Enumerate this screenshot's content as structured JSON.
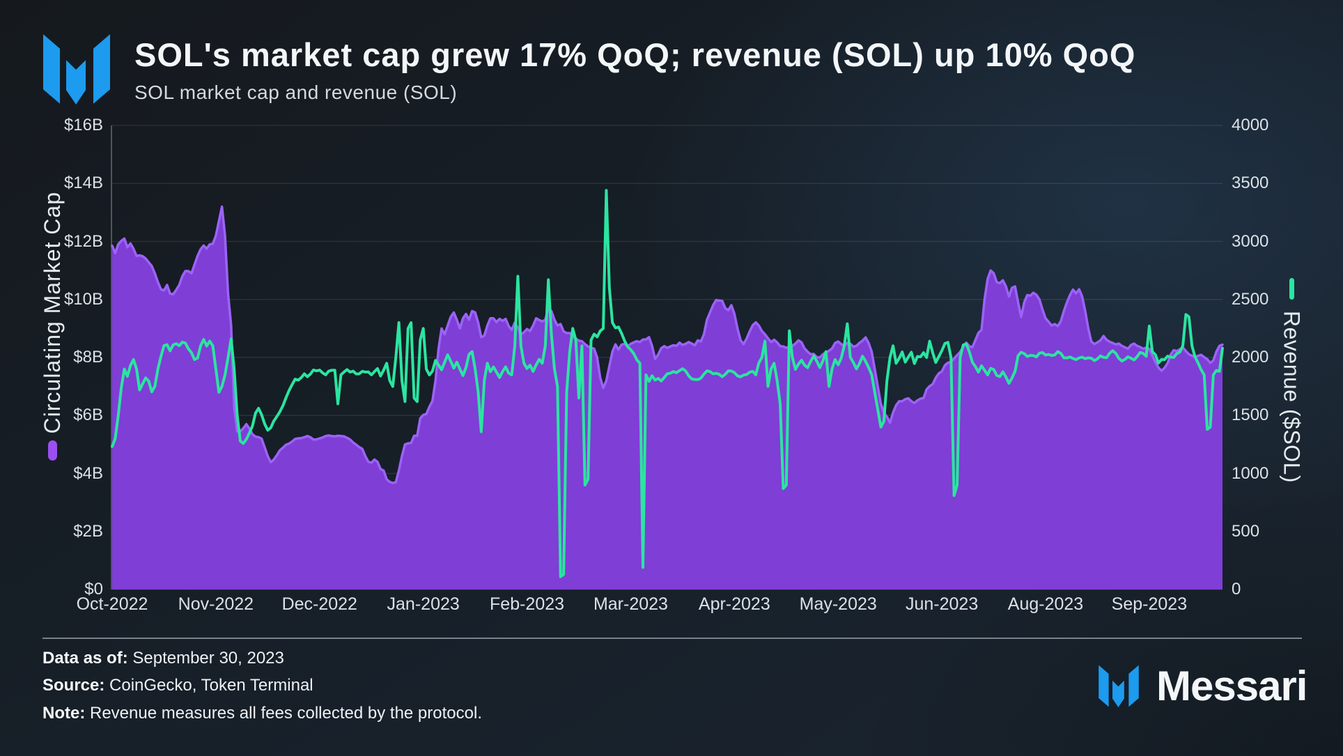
{
  "header": {
    "title": "SOL's market cap grew 17% QoQ; revenue (SOL) up 10% QoQ",
    "subtitle": "SOL market cap and revenue (SOL)"
  },
  "footer": {
    "data_as_of_label": "Data as of:",
    "data_as_of_value": "September 30, 2023",
    "source_label": "Source:",
    "source_value": "CoinGecko, Token Terminal",
    "note_label": "Note:",
    "note_value": "Revenue measures all fees collected by the protocol.",
    "wordmark": "Messari"
  },
  "colors": {
    "brand_blue": "#1c9bef",
    "market_cap_purple": "#7f3ed6",
    "market_cap_legend": "#9b4ff0",
    "market_cap_edge": "#9b63f7",
    "revenue_green": "#2be5a0"
  },
  "chart_data": {
    "type": "area+line",
    "title": "SOL market cap and revenue (SOL)",
    "x_axis": {
      "tick_labels": [
        "Oct-2022",
        "Nov-2022",
        "Dec-2022",
        "Jan-2023",
        "Feb-2023",
        "Mar-2023",
        "Apr-2023",
        "May-2023",
        "Jun-2023",
        "Aug-2023",
        "Sep-2023"
      ],
      "tick_interval_days": 34,
      "range_days": 365
    },
    "y_axis_left": {
      "label": "Circulating Market Cap",
      "tick_labels": [
        "$16B",
        "$14B",
        "$12B",
        "$10B",
        "$8B",
        "$6B",
        "$4B",
        "$2B",
        "$0"
      ],
      "min": 0,
      "max": 16,
      "unit": "billion USD"
    },
    "y_axis_right": {
      "label": "Revenue ($SOL)",
      "tick_labels": [
        "4000",
        "3500",
        "3000",
        "2500",
        "2000",
        "1500",
        "1000",
        "500",
        "0"
      ],
      "min": 0,
      "max": 4000,
      "unit": "SOL"
    },
    "grid": "horizontal",
    "series": [
      {
        "name": "Circulating Market Cap",
        "kind": "area",
        "axis": "left",
        "unit": "billion USD",
        "values": [
          11.85,
          11.6,
          11.9,
          12.02,
          12.1,
          11.8,
          11.93,
          11.75,
          11.5,
          11.52,
          11.49,
          11.41,
          11.28,
          11.15,
          10.9,
          10.6,
          10.35,
          10.31,
          10.5,
          10.2,
          10.18,
          10.33,
          10.5,
          10.8,
          10.98,
          10.98,
          10.9,
          11.2,
          11.5,
          11.73,
          11.86,
          11.75,
          11.9,
          11.92,
          12.2,
          12.7,
          13.2,
          12.2,
          10.2,
          9.1,
          6.3,
          5.45,
          5.45,
          5.56,
          5.7,
          5.55,
          5.35,
          5.27,
          5.25,
          5.2,
          4.9,
          4.6,
          4.39,
          4.48,
          4.63,
          4.8,
          4.89,
          4.99,
          5.03,
          5.1,
          5.19,
          5.21,
          5.22,
          5.25,
          5.29,
          5.25,
          5.17,
          5.17,
          5.21,
          5.24,
          5.29,
          5.31,
          5.29,
          5.28,
          5.3,
          5.29,
          5.28,
          5.23,
          5.17,
          5.07,
          4.99,
          4.91,
          4.85,
          4.6,
          4.4,
          4.37,
          4.48,
          4.4,
          4.15,
          4.1,
          3.8,
          3.71,
          3.67,
          3.7,
          4.1,
          4.6,
          5.0,
          5.04,
          5.05,
          5.3,
          5.3,
          5.9,
          6.02,
          6.05,
          6.3,
          6.5,
          7.2,
          8.3,
          9.0,
          8.8,
          9.1,
          9.4,
          9.55,
          9.3,
          9.0,
          9.35,
          9.5,
          9.3,
          9.6,
          9.55,
          9.2,
          8.7,
          8.75,
          9.1,
          9.35,
          9.35,
          9.22,
          9.33,
          9.26,
          9.33,
          9.08,
          8.95,
          9.2,
          9.03,
          8.79,
          8.87,
          8.98,
          8.91,
          9.1,
          9.35,
          9.29,
          9.24,
          9.3,
          9.68,
          9.6,
          9.3,
          9.1,
          9.15,
          8.9,
          8.84,
          8.84,
          8.73,
          8.65,
          8.58,
          8.56,
          8.46,
          8.38,
          8.34,
          8.3,
          8.0,
          7.3,
          6.95,
          7.2,
          7.7,
          8.2,
          8.45,
          8.27,
          8.44,
          8.47,
          8.38,
          8.47,
          8.52,
          8.56,
          8.53,
          8.62,
          8.62,
          8.7,
          8.4,
          7.95,
          8.1,
          8.32,
          8.39,
          8.33,
          8.38,
          8.42,
          8.4,
          8.51,
          8.43,
          8.47,
          8.53,
          8.48,
          8.42,
          8.59,
          8.55,
          8.8,
          9.3,
          9.55,
          9.8,
          9.98,
          9.96,
          9.95,
          9.7,
          9.63,
          9.8,
          9.5,
          9.0,
          8.6,
          8.46,
          8.65,
          8.9,
          9.11,
          9.21,
          9.1,
          8.91,
          8.8,
          8.66,
          8.53,
          8.61,
          8.52,
          8.39,
          8.38,
          8.33,
          8.37,
          8.4,
          8.48,
          8.59,
          8.52,
          8.31,
          8.2,
          8.11,
          8.12,
          8.01,
          8.0,
          8.11,
          8.17,
          8.23,
          8.31,
          8.5,
          8.55,
          8.46,
          8.4,
          8.5,
          8.47,
          8.37,
          8.4,
          8.5,
          8.58,
          8.69,
          8.5,
          8.2,
          7.6,
          7.0,
          6.4,
          6.1,
          5.95,
          5.75,
          6.1,
          6.35,
          6.49,
          6.49,
          6.56,
          6.59,
          6.49,
          6.43,
          6.52,
          6.58,
          6.6,
          6.9,
          7.01,
          7.08,
          7.3,
          7.45,
          7.52,
          7.73,
          7.82,
          7.84,
          7.96,
          8.08,
          8.19,
          8.36,
          8.51,
          8.39,
          8.35,
          8.6,
          8.85,
          8.95,
          10.0,
          10.7,
          11.0,
          10.9,
          10.6,
          10.56,
          10.66,
          10.45,
          10.1,
          10.4,
          10.45,
          9.9,
          9.4,
          9.9,
          10.15,
          10.13,
          10.23,
          10.16,
          10.0,
          9.65,
          9.35,
          9.23,
          9.1,
          9.15,
          9.08,
          9.25,
          9.6,
          9.9,
          10.15,
          10.34,
          10.21,
          10.35,
          10.1,
          9.6,
          9.0,
          8.55,
          8.46,
          8.52,
          8.59,
          8.74,
          8.61,
          8.54,
          8.5,
          8.45,
          8.48,
          8.4,
          8.35,
          8.3,
          8.43,
          8.48,
          8.4,
          8.36,
          8.3,
          8.34,
          8.3,
          8.07,
          7.84,
          7.65,
          7.54,
          7.64,
          7.8,
          8.1,
          8.25,
          8.22,
          8.28,
          8.34,
          8.22,
          8.11,
          8.06,
          8.01,
          8.06,
          8.09,
          8.01,
          7.94,
          7.81,
          7.9,
          8.2,
          8.4,
          8.44
        ]
      },
      {
        "name": "Revenue ($SOL)",
        "kind": "line",
        "axis": "right",
        "unit": "SOL",
        "values": [
          1232,
          1300,
          1500,
          1740,
          1900,
          1837,
          1930,
          1982,
          1900,
          1720,
          1773,
          1824,
          1795,
          1704,
          1750,
          1900,
          2009,
          2102,
          2110,
          2057,
          2108,
          2119,
          2101,
          2132,
          2124,
          2074,
          2041,
          1982,
          1995,
          2100,
          2155,
          2099,
          2141,
          2100,
          1900,
          1700,
          1750,
          1850,
          2000,
          2160,
          1900,
          1500,
          1280,
          1259,
          1295,
          1348,
          1410,
          1520,
          1562,
          1506,
          1427,
          1373,
          1394,
          1452,
          1491,
          1533,
          1585,
          1653,
          1715,
          1766,
          1813,
          1804,
          1826,
          1859,
          1834,
          1857,
          1892,
          1884,
          1891,
          1867,
          1850,
          1882,
          1890,
          1890,
          1600,
          1850,
          1874,
          1895,
          1874,
          1882,
          1858,
          1859,
          1880,
          1874,
          1875,
          1850,
          1878,
          1904,
          1840,
          1891,
          1950,
          1800,
          1750,
          2000,
          2300,
          1800,
          1620,
          2250,
          2300,
          1650,
          1620,
          2150,
          2250,
          1900,
          1849,
          1882,
          1974,
          1934,
          1894,
          1959,
          2023,
          1967,
          1907,
          1959,
          1900,
          1844,
          1913,
          2027,
          2050,
          1900,
          1700,
          1360,
          1800,
          1950,
          1877,
          1918,
          1873,
          1827,
          1878,
          1919,
          1864,
          1850,
          2100,
          2700,
          2100,
          1950,
          1905,
          1933,
          1880,
          1936,
          1984,
          1950,
          2100,
          2670,
          2200,
          1900,
          1750,
          110,
          130,
          1700,
          2050,
          2250,
          2150,
          1650,
          2100,
          900,
          950,
          2150,
          2201,
          2177,
          2228,
          2250,
          3440,
          2600,
          2300,
          2255,
          2262,
          2208,
          2143,
          2092,
          2067,
          2033,
          1980,
          1950,
          190,
          1850,
          1794,
          1842,
          1805,
          1819,
          1797,
          1827,
          1860,
          1864,
          1878,
          1869,
          1886,
          1903,
          1884,
          1842,
          1815,
          1810,
          1809,
          1821,
          1856,
          1884,
          1878,
          1859,
          1863,
          1855,
          1834,
          1855,
          1884,
          1883,
          1869,
          1841,
          1833,
          1848,
          1853,
          1873,
          1880,
          1850,
          1953,
          2000,
          2140,
          1750,
          1900,
          1950,
          1800,
          1600,
          870,
          900,
          2230,
          2000,
          1898,
          1942,
          1976,
          1933,
          1912,
          1966,
          2013,
          1967,
          1913,
          1970,
          2050,
          1750,
          1900,
          1982,
          1937,
          1993,
          2100,
          2290,
          2000,
          1956,
          1902,
          1947,
          2011,
          1966,
          1913,
          1850,
          1700,
          1550,
          1400,
          1450,
          1800,
          2000,
          2100,
          1950,
          1992,
          2047,
          1960,
          2003,
          2045,
          1948,
          2008,
          2005,
          2041,
          2000,
          2140,
          2041,
          1957,
          2007,
          2058,
          2120,
          2130,
          2000,
          810,
          900,
          2000,
          2107,
          2117,
          2050,
          1959,
          1921,
          1874,
          1928,
          1890,
          1850,
          1906,
          1896,
          1845,
          1835,
          1876,
          1832,
          1777,
          1823,
          1881,
          2016,
          2045,
          2033,
          2008,
          2018,
          2016,
          2005,
          2037,
          2042,
          2021,
          2026,
          2017,
          2021,
          2050,
          2035,
          1997,
          1996,
          2004,
          1991,
          1981,
          1996,
          2003,
          1989,
          1997,
          1993,
          1973,
          1988,
          2013,
          2001,
          1998,
          2036,
          2058,
          2036,
          1993,
          1969,
          1983,
          2006,
          1993,
          1978,
          2006,
          2043,
          2035,
          2010,
          2270,
          2050,
          2024,
          1952,
          1982,
          1981,
          2011,
          2003,
          2000,
          2033,
          2046,
          2100,
          2370,
          2350,
          2100,
          2005,
          1952,
          1894,
          1850,
          1380,
          1400,
          1850,
          1888,
          1880,
          2080
        ]
      }
    ]
  }
}
